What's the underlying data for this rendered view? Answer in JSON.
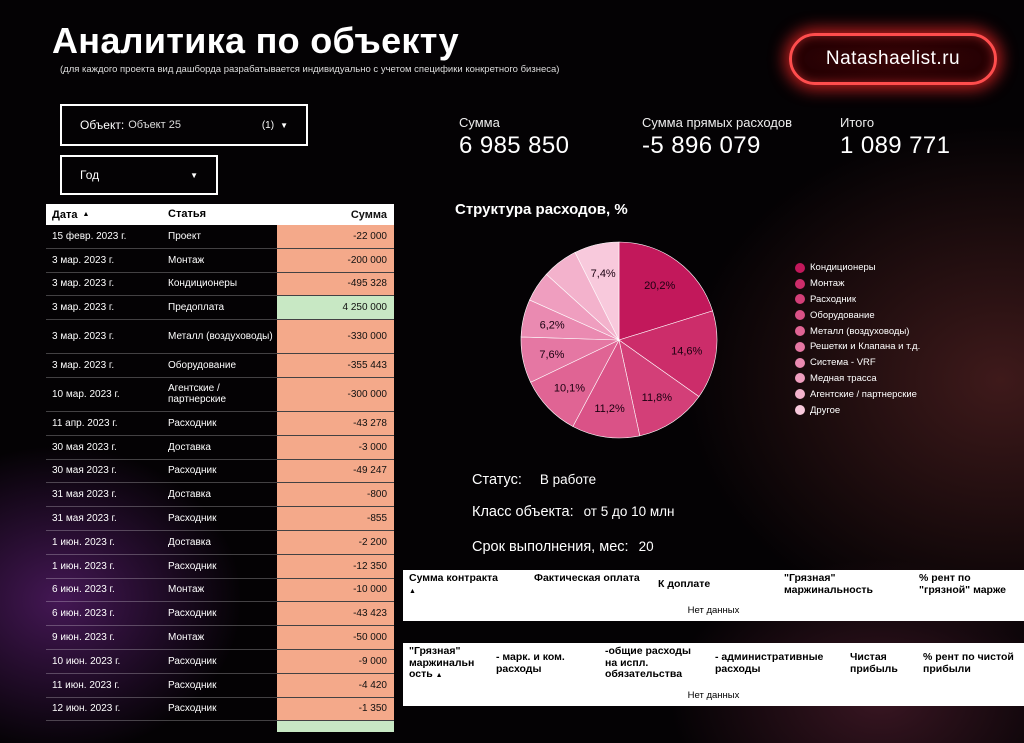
{
  "header": {
    "title": "Аналитика по объекту",
    "subtitle": "(для каждого проекта вид дашборда разрабатывается индивидуально с учетом специфики конкретного бизнеса)",
    "brand": "Natashaelist.ru"
  },
  "filters": {
    "object_label": "Объект:",
    "object_value": "Объект 25",
    "object_count": "(1)",
    "year_label": "Год"
  },
  "table": {
    "headers": {
      "date": "Дата",
      "item": "Статья",
      "sum": "Сумма"
    },
    "rows": [
      {
        "date": "15 февр. 2023 г.",
        "item": "Проект",
        "sum": "-22 000"
      },
      {
        "date": "3 мар. 2023 г.",
        "item": "Монтаж",
        "sum": "-200 000"
      },
      {
        "date": "3 мар. 2023 г.",
        "item": "Кондиционеры",
        "sum": "-495 328"
      },
      {
        "date": "3 мар. 2023 г.",
        "item": "Предоплата",
        "sum": "4 250 000"
      },
      {
        "date": "3 мар. 2023 г.",
        "item": "Металл (воздуховоды)",
        "sum": "-330 000"
      },
      {
        "date": "3 мар. 2023 г.",
        "item": "Оборудование",
        "sum": "-355 443"
      },
      {
        "date": "10 мар. 2023 г.",
        "item": "Агентские / партнерские",
        "sum": "-300 000"
      },
      {
        "date": "11 апр. 2023 г.",
        "item": "Расходник",
        "sum": "-43 278"
      },
      {
        "date": "30 мая 2023 г.",
        "item": "Доставка",
        "sum": "-3 000"
      },
      {
        "date": "30 мая 2023 г.",
        "item": "Расходник",
        "sum": "-49 247"
      },
      {
        "date": "31 мая 2023 г.",
        "item": "Доставка",
        "sum": "-800"
      },
      {
        "date": "31 мая 2023 г.",
        "item": "Расходник",
        "sum": "-855"
      },
      {
        "date": "1 июн. 2023 г.",
        "item": "Доставка",
        "sum": "-2 200"
      },
      {
        "date": "1 июн. 2023 г.",
        "item": "Расходник",
        "sum": "-12 350"
      },
      {
        "date": "6 июн. 2023 г.",
        "item": "Монтаж",
        "sum": "-10 000"
      },
      {
        "date": "6 июн. 2023 г.",
        "item": "Расходник",
        "sum": "-43 423"
      },
      {
        "date": "9 июн. 2023 г.",
        "item": "Монтаж",
        "sum": "-50 000"
      },
      {
        "date": "10 июн. 2023 г.",
        "item": "Расходник",
        "sum": "-9 000"
      },
      {
        "date": "11 июн. 2023 г.",
        "item": "Расходник",
        "sum": "-4 420"
      },
      {
        "date": "12 июн. 2023 г.",
        "item": "Расходник",
        "sum": "-1 350"
      }
    ]
  },
  "kpis": [
    {
      "label": "Сумма",
      "value": "6 985 850"
    },
    {
      "label": "Сумма прямых расходов",
      "value": "-5 896 079"
    },
    {
      "label": "Итого",
      "value": "1 089 771"
    }
  ],
  "chart_data": {
    "type": "pie",
    "title": "Структура расходов, %",
    "categories": [
      "Кондиционеры",
      "Монтаж",
      "Расходник",
      "Оборудование",
      "Металл (воздуховоды)",
      "Решетки и Клапана и т.д.",
      "Система - VRF",
      "Медная трасса",
      "Агентские / партнерские",
      "Другое"
    ],
    "values": [
      20.2,
      14.6,
      11.8,
      11.2,
      10.1,
      7.6,
      6.2,
      5.0,
      5.9,
      7.4
    ],
    "labels": [
      "20,2%",
      "14,6%",
      "11,8%",
      "11,2%",
      "10,1%",
      "7,6%",
      "6,2%",
      "",
      "",
      "7,4%"
    ],
    "colors": [
      "#c2185b",
      "#cc2d6a",
      "#d33f78",
      "#da5287",
      "#e06494",
      "#e577a3",
      "#ea8ab1",
      "#ef9ebf",
      "#f3b2cc",
      "#f8c9dc"
    ],
    "legend": "right"
  },
  "status": {
    "status_label": "Статус:",
    "status_value": "В работе",
    "class_label": "Класс объекта:",
    "class_value": "от 5 до 10 млн",
    "term_label": "Срок выполнения, мес:",
    "term_value": "20"
  },
  "contract_table": {
    "headers": [
      "Сумма контракта",
      "Фактическая оплата",
      "К доплате",
      "\"Грязная\" маржинальность",
      "% рент по \"грязной\" марже"
    ],
    "empty": "Нет данных"
  },
  "margin_table": {
    "headers": [
      "\"Грязная\" маржинальн ость",
      "- марк. и ком. расходы",
      "-общие расходы на испл. обязательства",
      "- административные расходы",
      "Чистая прибыль",
      "% рент по чистой прибыли"
    ],
    "empty": "Нет данных"
  },
  "icons": {
    "sort": "sort-up-icon",
    "dropdown": "caret-down-icon"
  }
}
